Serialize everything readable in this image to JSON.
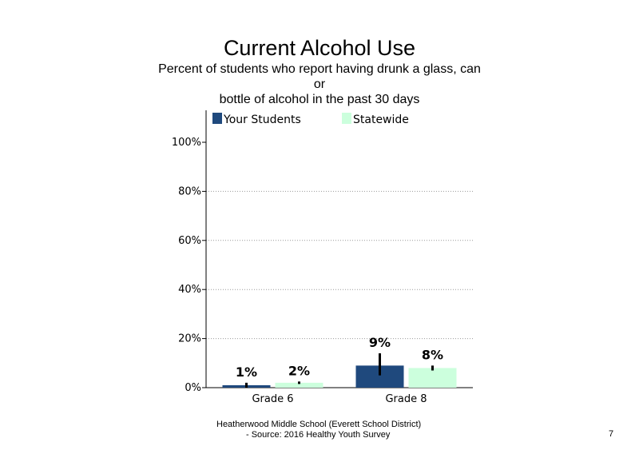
{
  "chart_data": {
    "type": "bar",
    "title": "Current Alcohol Use",
    "subtitle_lines": [
      "Percent of students  who report having drunk a glass, can",
      "or",
      "bottle of alcohol in the past 30 days"
    ],
    "categories": [
      "Grade 6",
      "Grade 8"
    ],
    "series": [
      {
        "name": "Your Students",
        "color": "#1f497d",
        "values": [
          1,
          9
        ],
        "labels": [
          "1%",
          "9%"
        ],
        "error": [
          [
            0,
            2
          ],
          [
            5,
            14
          ]
        ]
      },
      {
        "name": "Statewide",
        "color": "#ccffdd",
        "values": [
          2,
          8
        ],
        "labels": [
          "2%",
          "8%"
        ],
        "error": [
          [
            1.5,
            2.5
          ],
          [
            7,
            9
          ]
        ]
      }
    ],
    "ylim": [
      0,
      100
    ],
    "yticks": [
      "0%",
      "20%",
      "40%",
      "60%",
      "80%",
      "100%"
    ],
    "grid": true,
    "legend_position": "top"
  },
  "footer": {
    "line1": "Heatherwood Middle School (Everett School District)",
    "line2": "- Source: 2016 Healthy  Youth Survey"
  },
  "page_number": "7"
}
